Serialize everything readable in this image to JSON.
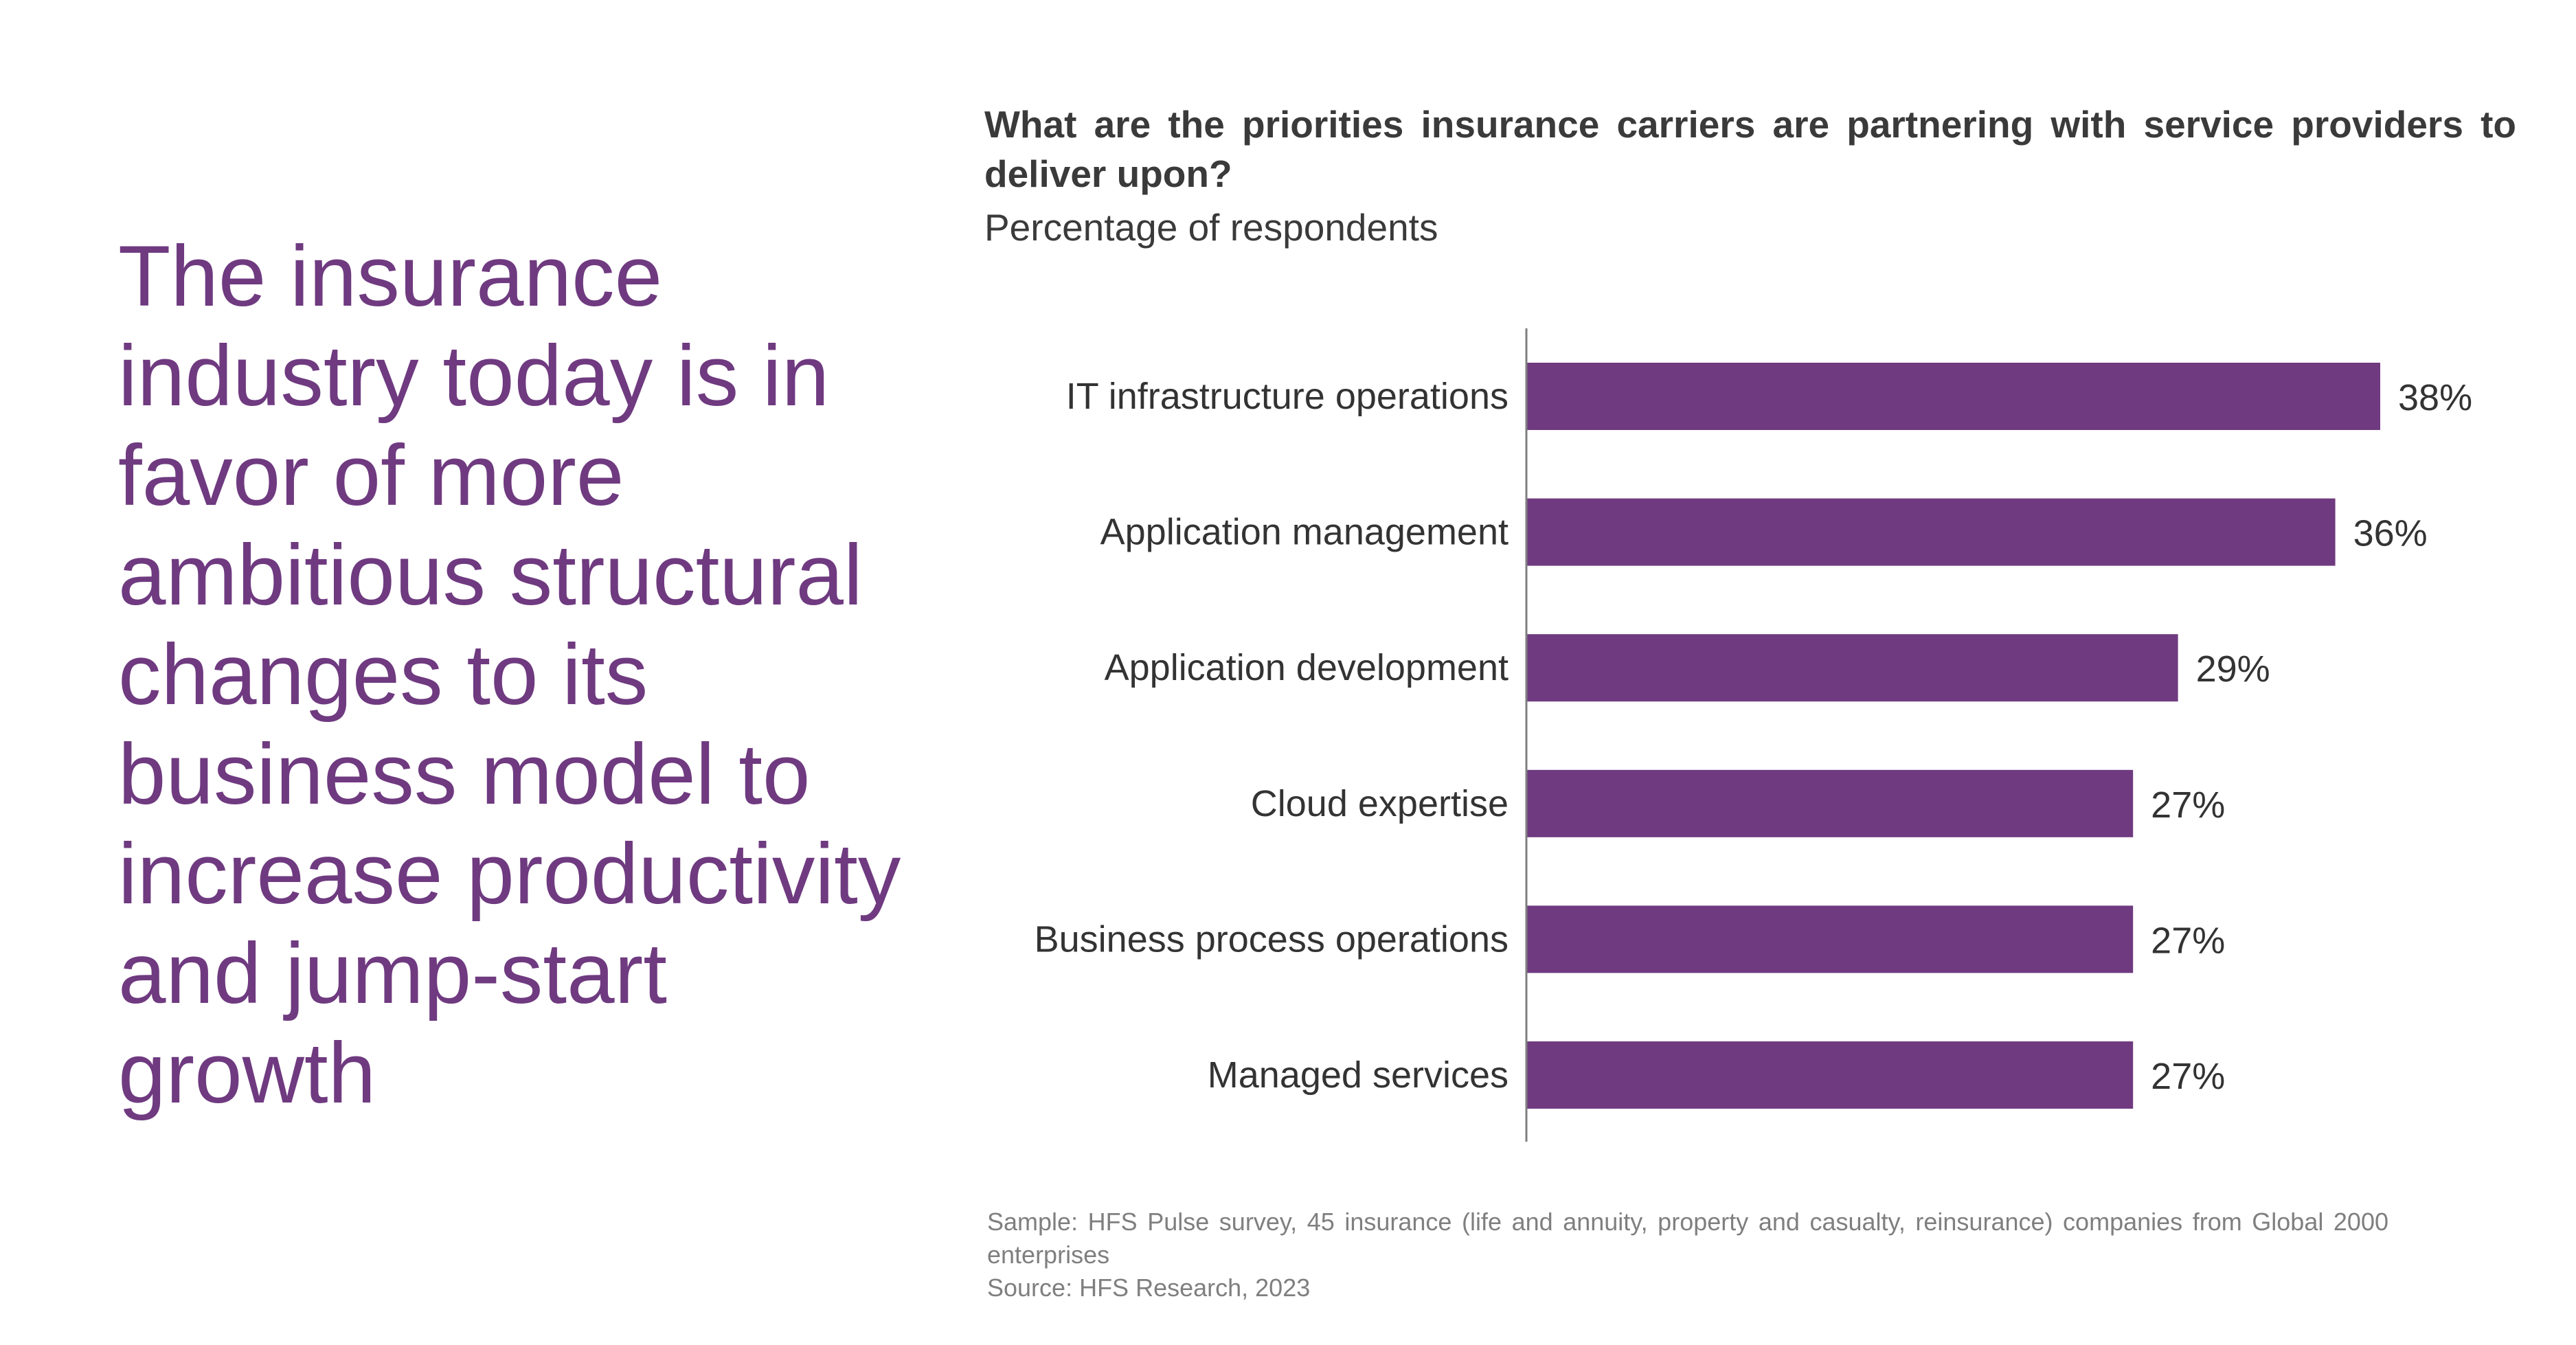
{
  "headline": "The insurance industry today is in favor of more ambitious structural changes to its business model to increase productivity and jump-start growth",
  "chart_data": {
    "type": "bar",
    "orientation": "horizontal",
    "title": "What are the priorities insurance carriers are partnering with service providers to deliver upon?",
    "subtitle": "Percentage of respondents",
    "categories": [
      "IT infrastructure operations",
      "Application management",
      "Application development",
      "Cloud expertise",
      "Business process operations",
      "Managed services"
    ],
    "values": [
      38,
      36,
      29,
      27,
      27,
      27
    ],
    "value_labels": [
      "38%",
      "36%",
      "29%",
      "27%",
      "27%",
      "27%"
    ],
    "value_unit": "%",
    "xlim": [
      0,
      40
    ],
    "grid": false,
    "legend": "none",
    "bar_color": "#6F3A80"
  },
  "footnote": {
    "sample": "Sample: HFS Pulse survey, 45 insurance (life and annuity, property and casualty, reinsurance) companies from Global 2000 enterprises",
    "source": "Source: HFS Research, 2023"
  },
  "colors": {
    "accent": "#6F3A80",
    "text": "#3a3a3a",
    "footnote": "#7f7f7f",
    "axis": "#7f7f7f"
  }
}
